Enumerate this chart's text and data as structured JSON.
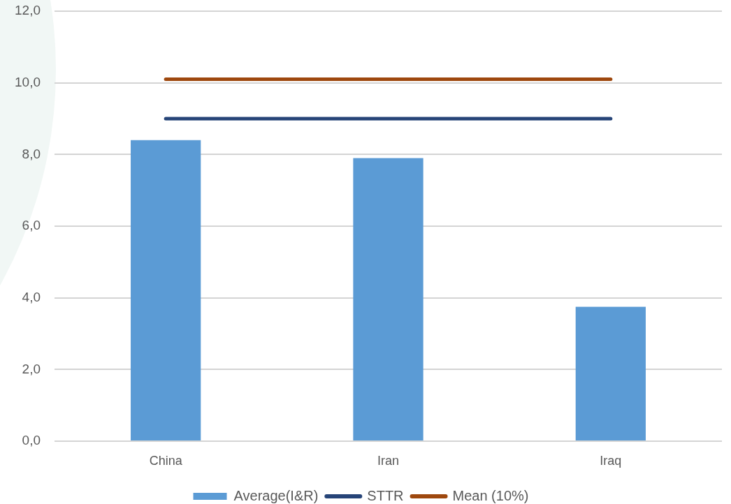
{
  "chart_data": {
    "type": "bar",
    "categories": [
      "China",
      "Iran",
      "Iraq"
    ],
    "series": [
      {
        "name": "Average(I&R)",
        "color": "#5b9bd5",
        "values": [
          8.4,
          7.9,
          3.75
        ]
      },
      {
        "name": "STTR",
        "type": "line",
        "color": "#264478",
        "values": [
          9.0,
          9.0,
          9.0
        ]
      },
      {
        "name": "Mean (10%)",
        "type": "line",
        "color": "#9e480e",
        "values": [
          10.1,
          10.1,
          10.1
        ]
      }
    ],
    "ylim": [
      0,
      12
    ],
    "yticks": [
      {
        "value": 0,
        "label": "0,0"
      },
      {
        "value": 2,
        "label": "2,0"
      },
      {
        "value": 4,
        "label": "4,0"
      },
      {
        "value": 6,
        "label": "6,0"
      },
      {
        "value": 8,
        "label": "8,0"
      },
      {
        "value": 10,
        "label": "10,0"
      },
      {
        "value": 12,
        "label": "12,0"
      }
    ],
    "grid": "y",
    "legend": "bottom",
    "marker": "none",
    "line_style": "solid"
  }
}
